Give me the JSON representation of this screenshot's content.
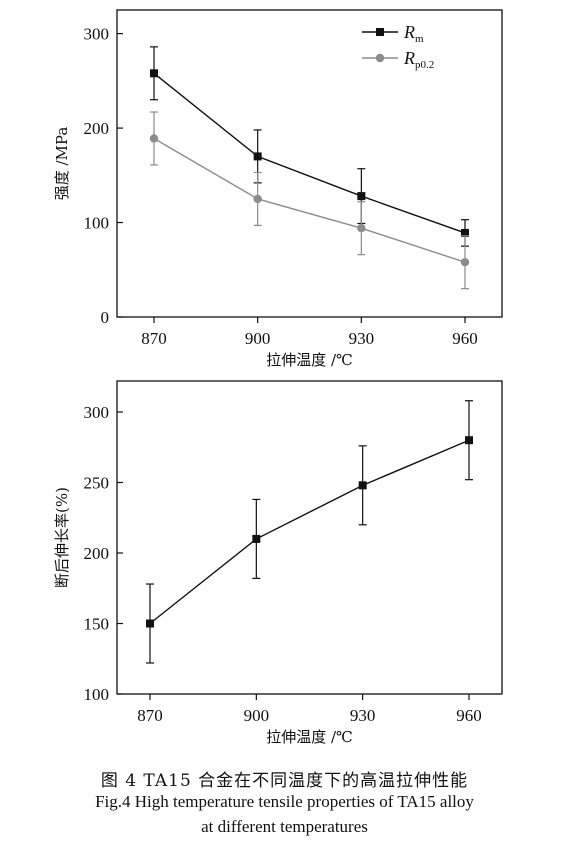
{
  "caption": {
    "cn": "图 4 TA15 合金在不同温度下的高温拉伸性能",
    "en_line1": "Fig.4 High temperature tensile properties of TA15 alloy",
    "en_line2": "at different temperatures"
  },
  "chart_data": [
    {
      "type": "line",
      "xlabel": "拉伸温度 /℃",
      "ylabel": "强度 /MPa",
      "categories": [
        "870",
        "900",
        "930",
        "960"
      ],
      "ylim": [
        0,
        320
      ],
      "yticks": [
        0,
        100,
        200,
        300
      ],
      "legend_position": "top-right",
      "series": [
        {
          "name": "Rm",
          "name_main": "R",
          "name_sub": "m",
          "color": "#111111",
          "marker": "square",
          "values": [
            258,
            170,
            128,
            89
          ],
          "errors": [
            28,
            28,
            29,
            14
          ]
        },
        {
          "name": "Rp0.2",
          "name_main": "R",
          "name_sub": "p0.2",
          "color": "#8c8c8c",
          "marker": "circle",
          "values": [
            189,
            125,
            94,
            58
          ],
          "errors": [
            28,
            28,
            28,
            28
          ]
        }
      ]
    },
    {
      "type": "line",
      "xlabel": "拉伸温度 /℃",
      "ylabel": "断后伸长率(%)",
      "categories": [
        "870",
        "900",
        "930",
        "960"
      ],
      "ylim": [
        100,
        320
      ],
      "yticks": [
        100,
        150,
        200,
        250,
        300
      ],
      "series": [
        {
          "color": "#111111",
          "marker": "square",
          "values": [
            150,
            210,
            248,
            280
          ],
          "errors": [
            28,
            28,
            28,
            28
          ]
        }
      ]
    }
  ]
}
